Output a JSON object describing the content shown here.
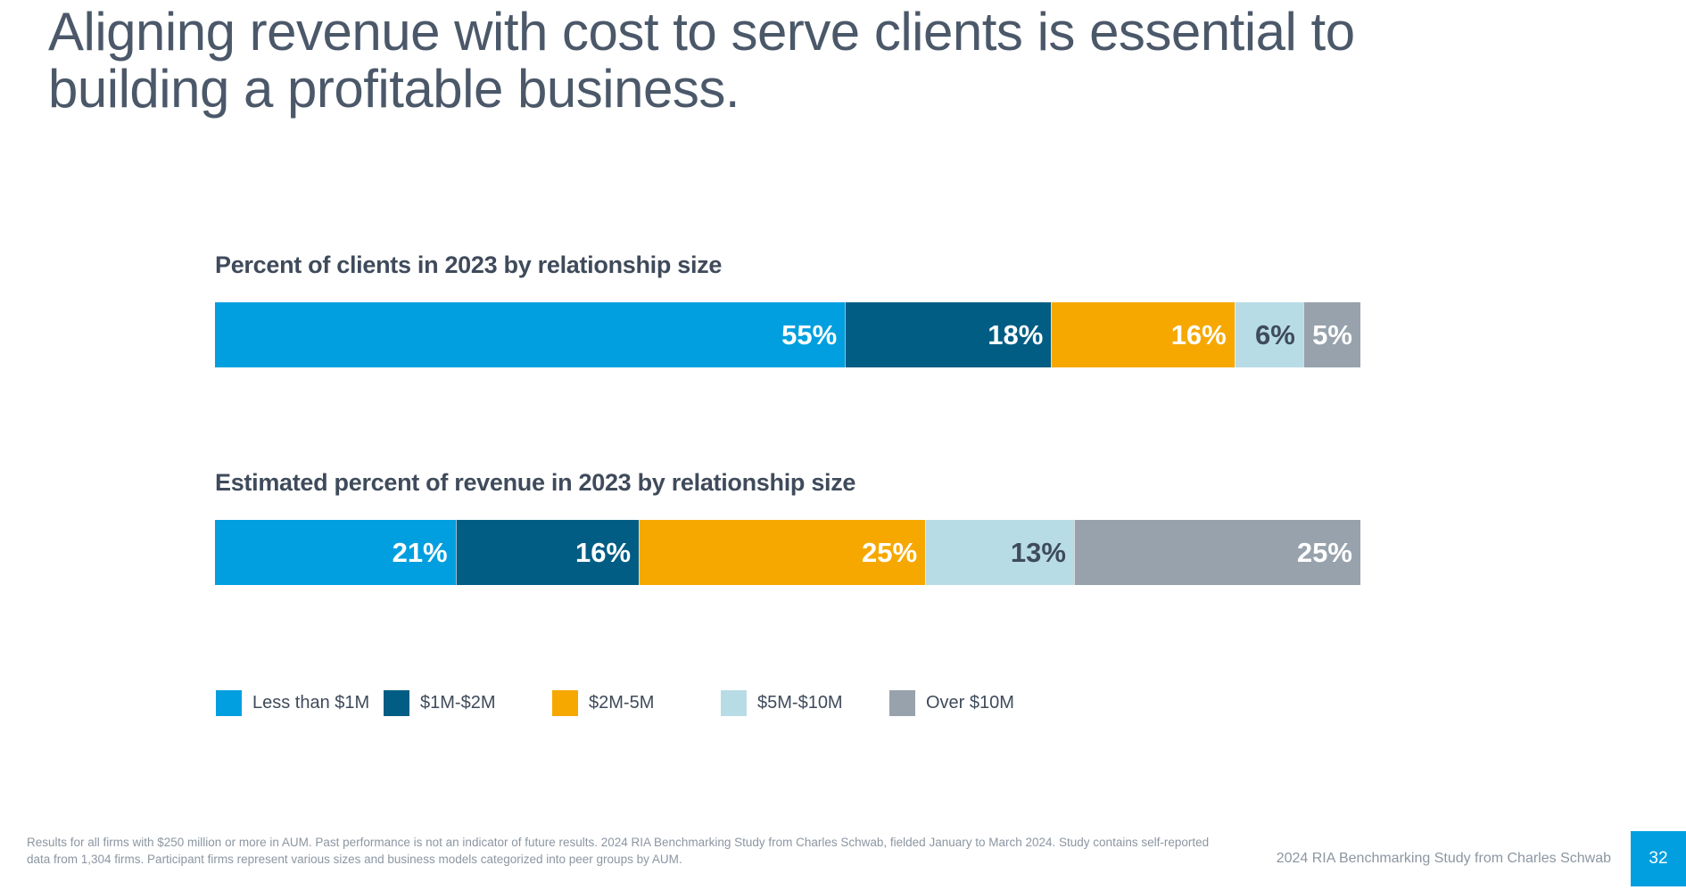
{
  "headline": "Aligning revenue with cost to serve clients is essential to building a profitable business.",
  "colors": {
    "less_than_1m": "#019fdf",
    "1m_2m": "#025d84",
    "2m_5m": "#f6a800",
    "5m_10m": "#b8dce6",
    "over_10m": "#97a2ac",
    "accent": "#019fdf"
  },
  "chart_data": [
    {
      "type": "bar",
      "orientation": "horizontal-stacked-100",
      "title": "Percent of clients in 2023 by relationship size",
      "categories": [
        "Less than $1M",
        "$1M-$2M",
        "$2M-5M",
        "$5M-$10M",
        "Over $10M"
      ],
      "values": [
        55,
        18,
        16,
        6,
        5
      ],
      "labels": [
        "55%",
        "18%",
        "16%",
        "6%",
        "5%"
      ],
      "unit": "%"
    },
    {
      "type": "bar",
      "orientation": "horizontal-stacked-100",
      "title": "Estimated percent of revenue in 2023 by relationship size",
      "categories": [
        "Less than $1M",
        "$1M-$2M",
        "$2M-5M",
        "$5M-$10M",
        "Over $10M"
      ],
      "values": [
        21,
        16,
        25,
        13,
        25
      ],
      "labels": [
        "21%",
        "16%",
        "25%",
        "13%",
        "25%"
      ],
      "unit": "%"
    }
  ],
  "legend": [
    {
      "label": "Less than $1M",
      "color": "#019fdf"
    },
    {
      "label": "$1M-$2M",
      "color": "#025d84"
    },
    {
      "label": "$2M-5M",
      "color": "#f6a800"
    },
    {
      "label": "$5M-$10M",
      "color": "#b8dce6"
    },
    {
      "label": "Over $10M",
      "color": "#97a2ac"
    }
  ],
  "footnote": "Results for all firms with $250 million or more in AUM. Past performance is not an indicator of future results. 2024 RIA Benchmarking Study from Charles Schwab, fielded January to March 2024. Study contains self-reported data from 1,304 firms. Participant firms represent various sizes and business models categorized into peer groups by AUM.",
  "footer_source": "2024 RIA Benchmarking Study from Charles Schwab",
  "page_number": "32"
}
